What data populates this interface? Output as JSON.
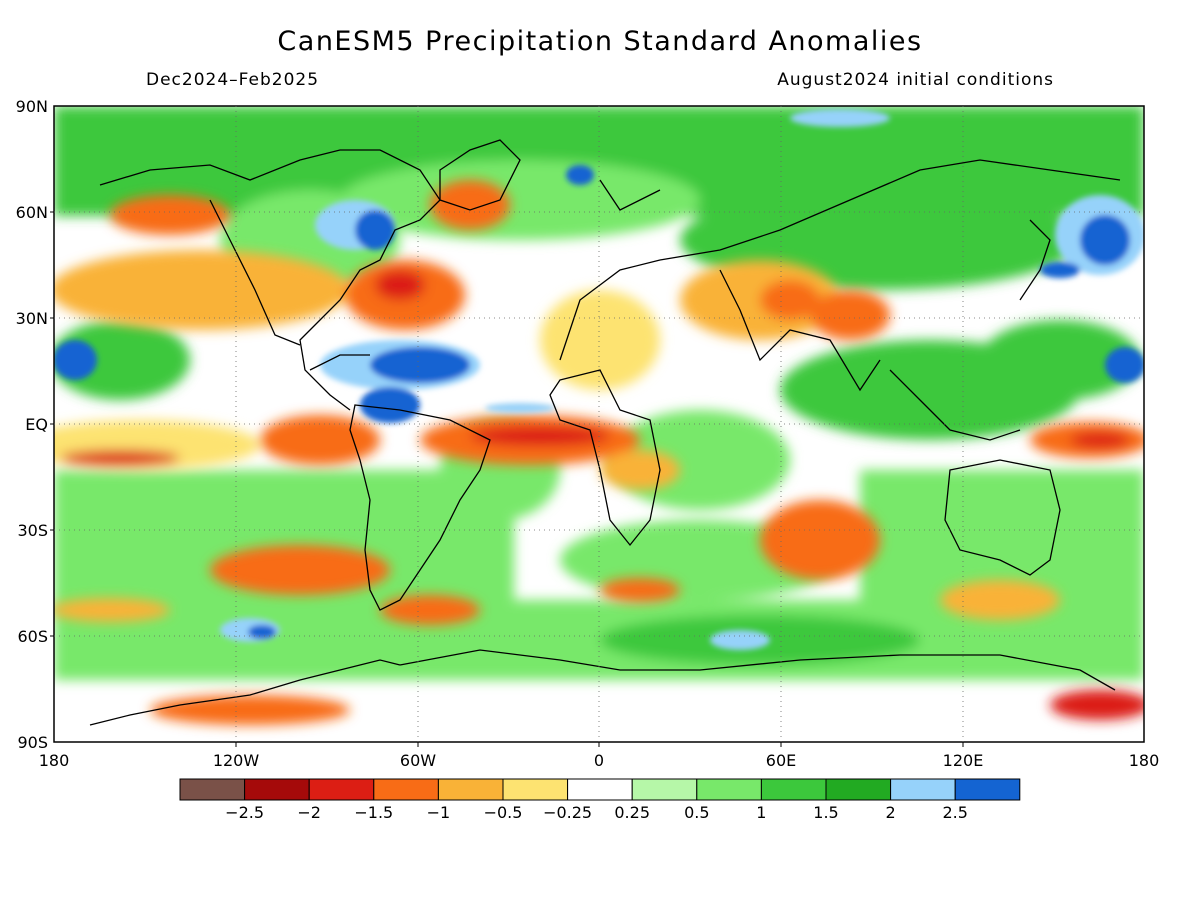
{
  "header": {
    "title": "CanESM5 Precipitation Standard Anomalies",
    "period": "Dec2024–Feb2025",
    "init": "August2024 initial conditions"
  },
  "axes": {
    "lat_labels": [
      "90N",
      "60N",
      "30N",
      "EQ",
      "30S",
      "60S",
      "90S"
    ],
    "lon_labels": [
      "180",
      "120W",
      "60W",
      "0",
      "60E",
      "120E",
      "180"
    ]
  },
  "colorbar": {
    "labels": [
      "−2.5",
      "−2",
      "−1.5",
      "−1",
      "−0.5",
      "−0.25",
      "0.25",
      "0.5",
      "1",
      "1.5",
      "2",
      "2.5"
    ],
    "colors": [
      "#7a5148",
      "#a50a0a",
      "#dc1e14",
      "#f86c16",
      "#f9b237",
      "#fde371",
      "#ffffff",
      "#b6f7a8",
      "#78e86a",
      "#3cc83c",
      "#22aa22",
      "#96d2fa",
      "#1464d2"
    ]
  }
}
